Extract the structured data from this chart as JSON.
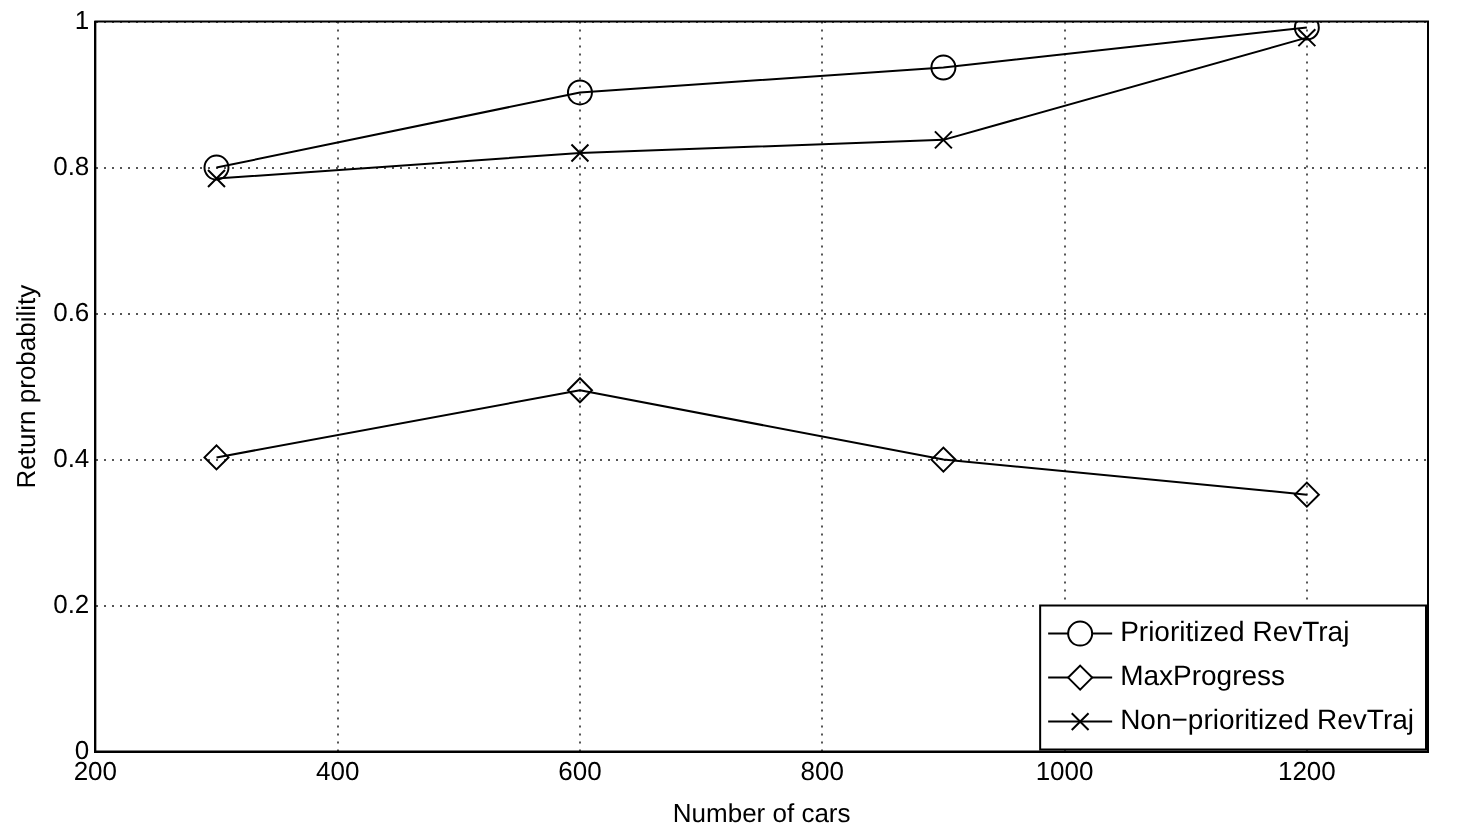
{
  "chart_data": {
    "type": "line",
    "xlabel": "Number of cars",
    "ylabel": "Return probability",
    "x": [
      300,
      600,
      900,
      1200
    ],
    "series": [
      {
        "name": "Prioritized RevTraj",
        "color": "#000000",
        "marker": "circle",
        "values": [
          0.8,
          0.903,
          0.937,
          0.992
        ]
      },
      {
        "name": "MaxProgress",
        "color": "#000000",
        "marker": "diamond",
        "values": [
          0.403,
          0.495,
          0.4,
          0.352
        ]
      },
      {
        "name": "Non−prioritized RevTraj",
        "color": "#000000",
        "marker": "cross",
        "values": [
          0.785,
          0.82,
          0.838,
          0.978
        ]
      }
    ],
    "xlim": [
      200,
      1300
    ],
    "xticks": [
      200,
      400,
      600,
      800,
      1000,
      1200
    ],
    "ylim": [
      0,
      1
    ],
    "yticks": [
      0,
      0.2,
      0.4,
      0.6,
      0.8,
      1
    ],
    "grid": true,
    "legend": "bottom right",
    "line_style": "solid"
  }
}
